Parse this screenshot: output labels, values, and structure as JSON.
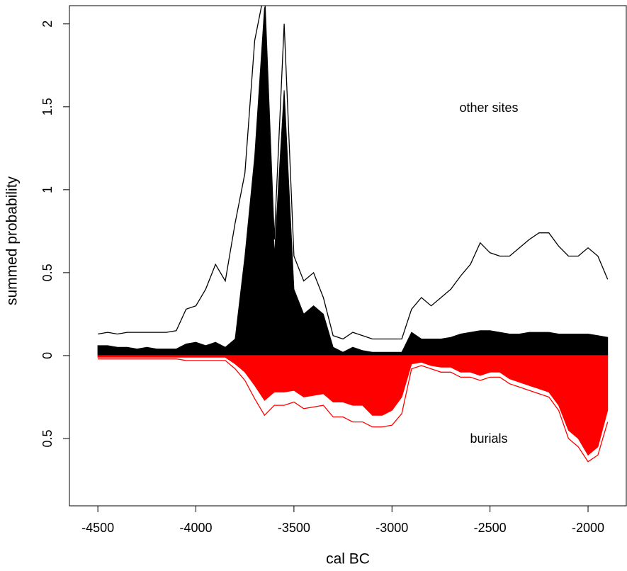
{
  "chart_data": {
    "type": "area",
    "xlabel": "cal BC",
    "ylabel": "summed probability",
    "annotations": [
      "other sites",
      "burials"
    ],
    "xlim": [
      -4645,
      -1805
    ],
    "ylim": [
      -0.906,
      2.11
    ],
    "xticks": [
      -4500,
      -4000,
      -3500,
      -3000,
      -2500,
      -2000
    ],
    "yticks": [
      {
        "value": -0.5,
        "label": "0.5"
      },
      0,
      0.5,
      1,
      1.5,
      2
    ],
    "x": [
      -4500,
      -4450,
      -4400,
      -4350,
      -4300,
      -4250,
      -4200,
      -4150,
      -4100,
      -4050,
      -4000,
      -3950,
      -3900,
      -3850,
      -3800,
      -3750,
      -3700,
      -3650,
      -3600,
      -3550,
      -3500,
      -3450,
      -3400,
      -3350,
      -3300,
      -3250,
      -3200,
      -3150,
      -3100,
      -3050,
      -3000,
      -2950,
      -2900,
      -2850,
      -2800,
      -2750,
      -2700,
      -2650,
      -2600,
      -2550,
      -2500,
      -2450,
      -2400,
      -2350,
      -2300,
      -2250,
      -2200,
      -2150,
      -2100,
      -2050,
      -2000,
      -1950,
      -1900
    ],
    "series": [
      {
        "kind": "area",
        "color": "#000000",
        "values": [
          0.06,
          0.06,
          0.05,
          0.05,
          0.04,
          0.05,
          0.04,
          0.04,
          0.04,
          0.07,
          0.08,
          0.06,
          0.08,
          0.05,
          0.1,
          0.6,
          1.2,
          2.1,
          0.6,
          1.6,
          0.4,
          0.25,
          0.3,
          0.25,
          0.05,
          0.02,
          0.05,
          0.03,
          0.02,
          0.02,
          0.02,
          0.02,
          0.14,
          0.1,
          0.1,
          0.1,
          0.11,
          0.13,
          0.14,
          0.15,
          0.15,
          0.14,
          0.13,
          0.13,
          0.14,
          0.14,
          0.14,
          0.13,
          0.13,
          0.13,
          0.13,
          0.12,
          0.11
        ]
      },
      {
        "kind": "line",
        "color": "#000000",
        "values": [
          0.13,
          0.14,
          0.13,
          0.14,
          0.14,
          0.14,
          0.14,
          0.14,
          0.15,
          0.28,
          0.3,
          0.4,
          0.55,
          0.45,
          0.8,
          1.1,
          1.9,
          2.2,
          0.7,
          2.0,
          0.6,
          0.45,
          0.5,
          0.35,
          0.12,
          0.1,
          0.14,
          0.12,
          0.1,
          0.1,
          0.1,
          0.1,
          0.28,
          0.35,
          0.3,
          0.35,
          0.4,
          0.48,
          0.55,
          0.68,
          0.62,
          0.6,
          0.6,
          0.65,
          0.7,
          0.74,
          0.74,
          0.66,
          0.6,
          0.6,
          0.65,
          0.6,
          0.46
        ]
      },
      {
        "kind": "area",
        "color": "#ff0000",
        "values": [
          -0.01,
          -0.01,
          -0.01,
          -0.01,
          -0.01,
          -0.01,
          -0.01,
          -0.01,
          -0.01,
          -0.01,
          -0.01,
          -0.01,
          -0.01,
          -0.01,
          -0.05,
          -0.1,
          -0.18,
          -0.27,
          -0.22,
          -0.22,
          -0.21,
          -0.25,
          -0.24,
          -0.23,
          -0.28,
          -0.28,
          -0.3,
          -0.3,
          -0.36,
          -0.36,
          -0.33,
          -0.25,
          -0.05,
          -0.04,
          -0.06,
          -0.07,
          -0.07,
          -0.1,
          -0.1,
          -0.12,
          -0.1,
          -0.1,
          -0.14,
          -0.16,
          -0.18,
          -0.2,
          -0.22,
          -0.3,
          -0.45,
          -0.5,
          -0.6,
          -0.55,
          -0.33
        ]
      },
      {
        "kind": "line",
        "color": "#ff0000",
        "values": [
          -0.02,
          -0.02,
          -0.02,
          -0.02,
          -0.02,
          -0.02,
          -0.02,
          -0.02,
          -0.02,
          -0.03,
          -0.03,
          -0.03,
          -0.03,
          -0.03,
          -0.08,
          -0.15,
          -0.26,
          -0.36,
          -0.3,
          -0.3,
          -0.28,
          -0.32,
          -0.31,
          -0.3,
          -0.37,
          -0.37,
          -0.4,
          -0.4,
          -0.43,
          -0.43,
          -0.42,
          -0.35,
          -0.08,
          -0.06,
          -0.08,
          -0.1,
          -0.1,
          -0.13,
          -0.13,
          -0.15,
          -0.13,
          -0.13,
          -0.17,
          -0.19,
          -0.21,
          -0.23,
          -0.25,
          -0.33,
          -0.5,
          -0.55,
          -0.64,
          -0.6,
          -0.4
        ]
      }
    ]
  }
}
